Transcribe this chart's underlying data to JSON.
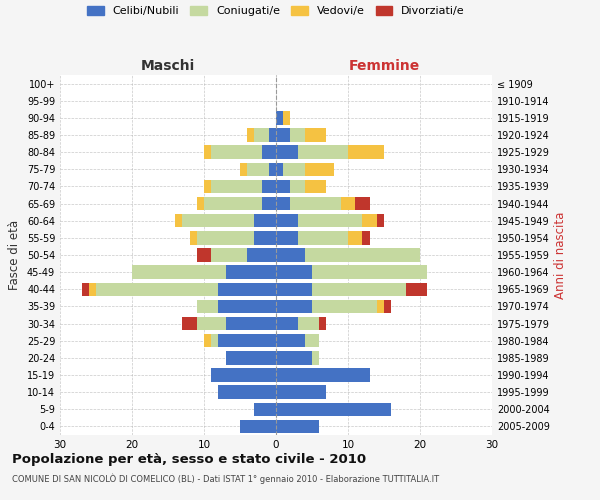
{
  "age_groups": [
    "0-4",
    "5-9",
    "10-14",
    "15-19",
    "20-24",
    "25-29",
    "30-34",
    "35-39",
    "40-44",
    "45-49",
    "50-54",
    "55-59",
    "60-64",
    "65-69",
    "70-74",
    "75-79",
    "80-84",
    "85-89",
    "90-94",
    "95-99",
    "100+"
  ],
  "birth_years": [
    "2005-2009",
    "2000-2004",
    "1995-1999",
    "1990-1994",
    "1985-1989",
    "1980-1984",
    "1975-1979",
    "1970-1974",
    "1965-1969",
    "1960-1964",
    "1955-1959",
    "1950-1954",
    "1945-1949",
    "1940-1944",
    "1935-1939",
    "1930-1934",
    "1925-1929",
    "1920-1924",
    "1915-1919",
    "1910-1914",
    "≤ 1909"
  ],
  "maschi": {
    "celibi": [
      5,
      3,
      8,
      9,
      7,
      8,
      7,
      8,
      8,
      7,
      4,
      3,
      3,
      2,
      2,
      1,
      2,
      1,
      0,
      0,
      0
    ],
    "coniugati": [
      0,
      0,
      0,
      0,
      0,
      1,
      4,
      3,
      17,
      13,
      5,
      8,
      10,
      8,
      7,
      3,
      7,
      2,
      0,
      0,
      0
    ],
    "vedovi": [
      0,
      0,
      0,
      0,
      0,
      1,
      0,
      0,
      1,
      0,
      0,
      1,
      1,
      1,
      1,
      1,
      1,
      1,
      0,
      0,
      0
    ],
    "divorziati": [
      0,
      0,
      0,
      0,
      0,
      0,
      2,
      0,
      1,
      0,
      2,
      0,
      0,
      0,
      0,
      0,
      0,
      0,
      0,
      0,
      0
    ]
  },
  "femmine": {
    "nubili": [
      6,
      16,
      7,
      13,
      5,
      4,
      3,
      5,
      5,
      5,
      4,
      3,
      3,
      2,
      2,
      1,
      3,
      2,
      1,
      0,
      0
    ],
    "coniugate": [
      0,
      0,
      0,
      0,
      1,
      2,
      3,
      9,
      13,
      16,
      16,
      7,
      9,
      7,
      2,
      3,
      7,
      2,
      0,
      0,
      0
    ],
    "vedove": [
      0,
      0,
      0,
      0,
      0,
      0,
      0,
      1,
      0,
      0,
      0,
      2,
      2,
      2,
      3,
      4,
      5,
      3,
      1,
      0,
      0
    ],
    "divorziate": [
      0,
      0,
      0,
      0,
      0,
      0,
      1,
      1,
      3,
      0,
      0,
      1,
      1,
      2,
      0,
      0,
      0,
      0,
      0,
      0,
      0
    ]
  },
  "colors": {
    "celibi_nubili": "#4472c4",
    "coniugati": "#c5d9a0",
    "vedovi": "#f5c242",
    "divorziati": "#c0362c"
  },
  "title": "Popolazione per età, sesso e stato civile - 2010",
  "subtitle": "COMUNE DI SAN NICOLÒ DI COMELICO (BL) - Dati ISTAT 1° gennaio 2010 - Elaborazione TUTTITALIA.IT",
  "xlabel_left": "Maschi",
  "xlabel_right": "Femmine",
  "ylabel_left": "Fasce di età",
  "ylabel_right": "Anni di nascita",
  "xlim": 30,
  "bg_color": "#f5f5f5",
  "plot_bg": "#ffffff",
  "legend_labels": [
    "Celibi/Nubili",
    "Coniugati/e",
    "Vedovi/e",
    "Divorziati/e"
  ]
}
